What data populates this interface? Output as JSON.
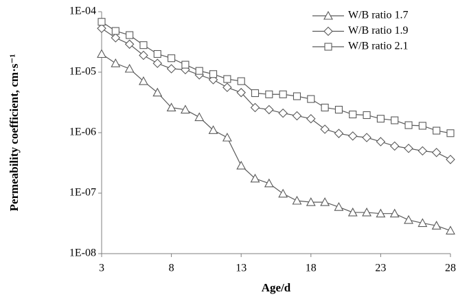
{
  "chart_data": {
    "type": "line",
    "x_label": "Age/d",
    "y_label": "Permeability coefficient, cm·s⁻¹",
    "x": [
      3,
      4,
      5,
      6,
      7,
      8,
      9,
      10,
      11,
      12,
      13,
      14,
      15,
      16,
      17,
      18,
      19,
      20,
      21,
      22,
      23,
      24,
      25,
      26,
      27,
      28
    ],
    "xlim": [
      3,
      28
    ],
    "xticks": [
      3,
      8,
      13,
      18,
      23,
      28
    ],
    "ylim": [
      1e-08,
      0.0001
    ],
    "y_scale": "log",
    "yticks": [
      {
        "value": 1e-08,
        "label": "1E-08"
      },
      {
        "value": 1e-07,
        "label": "1E-07"
      },
      {
        "value": 1e-06,
        "label": "1E-06"
      },
      {
        "value": 1e-05,
        "label": "1E-05"
      },
      {
        "value": 0.0001,
        "label": "1E-04"
      }
    ],
    "grid": false,
    "legend": "upper right",
    "series": [
      {
        "name": "W/B ratio 1.7",
        "color": "#595959",
        "marker": "triangle",
        "values": [
          2e-05,
          1.4e-05,
          1.14e-05,
          7.1e-06,
          4.6e-06,
          2.6e-06,
          2.4e-06,
          1.8e-06,
          1.1e-06,
          8.3e-07,
          2.85e-07,
          1.74e-07,
          1.45e-07,
          9.8e-08,
          7.5e-08,
          7.1e-08,
          7.1e-08,
          5.9e-08,
          4.8e-08,
          4.8e-08,
          4.6e-08,
          4.6e-08,
          3.6e-08,
          3.2e-08,
          2.9e-08,
          2.4e-08
        ]
      },
      {
        "name": "W/B ratio 1.9",
        "color": "#595959",
        "marker": "diamond",
        "values": [
          5.3e-05,
          3.7e-05,
          2.9e-05,
          1.9e-05,
          1.4e-05,
          1.14e-05,
          1.1e-05,
          9e-06,
          7.5e-06,
          5.6e-06,
          4.6e-06,
          2.6e-06,
          2.4e-06,
          2.1e-06,
          1.9e-06,
          1.7e-06,
          1.14e-06,
          9.7e-07,
          8.8e-07,
          8.3e-07,
          7.1e-07,
          6e-07,
          5.5e-07,
          5e-07,
          4.7e-07,
          3.6e-07
        ]
      },
      {
        "name": "W/B ratio 2.1",
        "color": "#595959",
        "marker": "square",
        "values": [
          6.8e-05,
          4.8e-05,
          4.1e-05,
          2.8e-05,
          2e-05,
          1.7e-05,
          1.33e-05,
          1.05e-05,
          9.3e-06,
          7.7e-06,
          7.1e-06,
          4.5e-06,
          4.3e-06,
          4.3e-06,
          4e-06,
          3.6e-06,
          2.6e-06,
          2.4e-06,
          2e-06,
          1.95e-06,
          1.7e-06,
          1.6e-06,
          1.33e-06,
          1.3e-06,
          1.08e-06,
          9.8e-07
        ]
      }
    ]
  }
}
